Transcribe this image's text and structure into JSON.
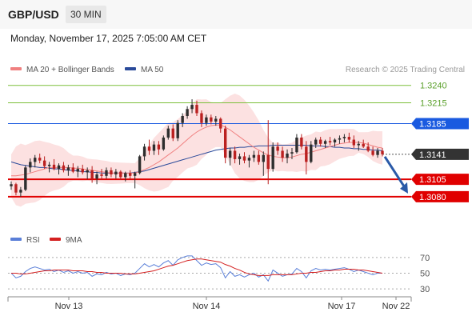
{
  "header": {
    "pair": "GBP/USD",
    "timeframe": "30 MIN"
  },
  "timestamp": "Monday, November 17, 2025 7:05:00 AM CET",
  "legend": {
    "ma20": "MA 20 + Bollinger Bands",
    "ma50": "MA 50",
    "credit": "Research © 2025 Trading Central"
  },
  "rsi_legend": {
    "rsi": "RSI",
    "ma9": "9MA"
  },
  "colors": {
    "up": "#2e2e2e",
    "down": "#bb2020",
    "ma20": "#f08080",
    "ma50": "#2a4a9a",
    "band": "#fcdede",
    "support": "#e00000",
    "pivot": "#1a5ae0",
    "resistance": "#7bbf3a",
    "last": "#333333",
    "rsi": "#5a7fd8",
    "rsi_ma": "#d42020"
  },
  "chart_data": [
    {
      "type": "candlestick",
      "title": "GBP/USD",
      "ylim": [
        1.305,
        1.325
      ],
      "x_ticks": [
        "Nov 13",
        "Nov 14",
        "Nov 17",
        "Nov 22"
      ],
      "levels": [
        {
          "label": "1.3240",
          "value": 1.324,
          "kind": "resistance"
        },
        {
          "label": "1.3215",
          "value": 1.3215,
          "kind": "resistance"
        },
        {
          "label": "1.3185",
          "value": 1.3185,
          "kind": "pivot"
        },
        {
          "label": "1.3141",
          "value": 1.3141,
          "kind": "last"
        },
        {
          "label": "1.3105",
          "value": 1.3105,
          "kind": "support"
        },
        {
          "label": "1.3080",
          "value": 1.308,
          "kind": "support"
        }
      ],
      "series": [
        {
          "name": "GBP/USD",
          "ohlc": [
            [
              1.3095,
              1.3102,
              1.309,
              1.3098
            ],
            [
              1.3098,
              1.31,
              1.3082,
              1.3086
            ],
            [
              1.3086,
              1.3094,
              1.308,
              1.309
            ],
            [
              1.309,
              1.3125,
              1.3088,
              1.3122
            ],
            [
              1.3122,
              1.3135,
              1.3115,
              1.313
            ],
            [
              1.313,
              1.314,
              1.3122,
              1.3136
            ],
            [
              1.3136,
              1.3142,
              1.3128,
              1.3132
            ],
            [
              1.3132,
              1.3138,
              1.312,
              1.3124
            ],
            [
              1.3124,
              1.313,
              1.3115,
              1.3126
            ],
            [
              1.3126,
              1.3134,
              1.3118,
              1.312
            ],
            [
              1.312,
              1.3128,
              1.3112,
              1.3125
            ],
            [
              1.3125,
              1.313,
              1.3115,
              1.3118
            ],
            [
              1.3118,
              1.3126,
              1.311,
              1.3122
            ],
            [
              1.3122,
              1.3128,
              1.3114,
              1.3116
            ],
            [
              1.3116,
              1.3124,
              1.3108,
              1.312
            ],
            [
              1.312,
              1.3126,
              1.3112,
              1.3115
            ],
            [
              1.3115,
              1.3122,
              1.3105,
              1.3118
            ],
            [
              1.3118,
              1.3124,
              1.31,
              1.3106
            ],
            [
              1.3106,
              1.3116,
              1.3098,
              1.3112
            ],
            [
              1.3112,
              1.312,
              1.3104,
              1.311
            ],
            [
              1.311,
              1.3122,
              1.3106,
              1.3118
            ],
            [
              1.3118,
              1.3122,
              1.3108,
              1.3112
            ],
            [
              1.3112,
              1.312,
              1.3106,
              1.3116
            ],
            [
              1.3116,
              1.3118,
              1.3104,
              1.3108
            ],
            [
              1.3108,
              1.3116,
              1.3102,
              1.3114
            ],
            [
              1.3114,
              1.3118,
              1.3106,
              1.311
            ],
            [
              1.311,
              1.3116,
              1.3092,
              1.3114
            ],
            [
              1.3114,
              1.314,
              1.3112,
              1.3138
            ],
            [
              1.3138,
              1.3156,
              1.3132,
              1.3152
            ],
            [
              1.3152,
              1.3162,
              1.314,
              1.3146
            ],
            [
              1.3146,
              1.316,
              1.314,
              1.3155
            ],
            [
              1.3155,
              1.316,
              1.314,
              1.3148
            ],
            [
              1.3148,
              1.3168,
              1.3146,
              1.3165
            ],
            [
              1.3165,
              1.3182,
              1.3162,
              1.3178
            ],
            [
              1.3178,
              1.3184,
              1.316,
              1.3164
            ],
            [
              1.3164,
              1.319,
              1.316,
              1.3186
            ],
            [
              1.3186,
              1.32,
              1.318,
              1.3196
            ],
            [
              1.3196,
              1.321,
              1.3192,
              1.3206
            ],
            [
              1.3206,
              1.322,
              1.32,
              1.3212
            ],
            [
              1.3212,
              1.3218,
              1.3196,
              1.32
            ],
            [
              1.32,
              1.3204,
              1.318,
              1.3186
            ],
            [
              1.3186,
              1.3198,
              1.3182,
              1.3194
            ],
            [
              1.3194,
              1.3198,
              1.3184,
              1.3188
            ],
            [
              1.3188,
              1.3196,
              1.3182,
              1.3192
            ],
            [
              1.3192,
              1.3194,
              1.3172,
              1.3178
            ],
            [
              1.3178,
              1.3182,
              1.3128,
              1.3136
            ],
            [
              1.3136,
              1.315,
              1.3125,
              1.3146
            ],
            [
              1.3146,
              1.3152,
              1.3128,
              1.3134
            ],
            [
              1.3134,
              1.3142,
              1.3126,
              1.3138
            ],
            [
              1.3138,
              1.3144,
              1.3128,
              1.3132
            ],
            [
              1.3132,
              1.314,
              1.3122,
              1.3136
            ],
            [
              1.3136,
              1.3146,
              1.313,
              1.314
            ],
            [
              1.314,
              1.3146,
              1.3126,
              1.313
            ],
            [
              1.313,
              1.3145,
              1.311,
              1.314
            ],
            [
              1.314,
              1.319,
              1.3098,
              1.312
            ],
            [
              1.312,
              1.3158,
              1.3116,
              1.3152
            ],
            [
              1.3152,
              1.3158,
              1.314,
              1.3146
            ],
            [
              1.3146,
              1.3152,
              1.313,
              1.3136
            ],
            [
              1.3136,
              1.3148,
              1.3128,
              1.3142
            ],
            [
              1.3142,
              1.315,
              1.3134,
              1.3144
            ],
            [
              1.3144,
              1.317,
              1.3142,
              1.3165
            ],
            [
              1.3165,
              1.317,
              1.3148,
              1.3152
            ],
            [
              1.3152,
              1.316,
              1.3112,
              1.313
            ],
            [
              1.313,
              1.316,
              1.3128,
              1.3155
            ],
            [
              1.3155,
              1.3165,
              1.315,
              1.3162
            ],
            [
              1.3162,
              1.3166,
              1.3152,
              1.3156
            ],
            [
              1.3156,
              1.3162,
              1.315,
              1.316
            ],
            [
              1.316,
              1.3166,
              1.3154,
              1.3158
            ],
            [
              1.3158,
              1.3164,
              1.3152,
              1.3162
            ],
            [
              1.3162,
              1.3168,
              1.3156,
              1.3164
            ],
            [
              1.3164,
              1.317,
              1.3158,
              1.3166
            ],
            [
              1.3166,
              1.3172,
              1.3158,
              1.3162
            ],
            [
              1.3162,
              1.3168,
              1.315,
              1.3154
            ],
            [
              1.3154,
              1.316,
              1.3146,
              1.3156
            ],
            [
              1.3156,
              1.3162,
              1.315,
              1.3152
            ],
            [
              1.3152,
              1.3158,
              1.3144,
              1.3146
            ],
            [
              1.3146,
              1.3152,
              1.3138,
              1.314
            ],
            [
              1.314,
              1.315,
              1.3136,
              1.3146
            ],
            [
              1.3146,
              1.315,
              1.3138,
              1.3141
            ]
          ]
        },
        {
          "name": "MA 20",
          "values": [
            1.311,
            1.311,
            1.3111,
            1.3112,
            1.3114,
            1.3116,
            1.3118,
            1.312,
            1.3122,
            1.3122,
            1.3122,
            1.3122,
            1.3122,
            1.3121,
            1.3121,
            1.312,
            1.3119,
            1.3118,
            1.3117,
            1.3116,
            1.3115,
            1.3114,
            1.3114,
            1.3114,
            1.3114,
            1.3114,
            1.3114,
            1.3116,
            1.3119,
            1.3122,
            1.3126,
            1.313,
            1.3135,
            1.314,
            1.3145,
            1.315,
            1.3156,
            1.3162,
            1.3168,
            1.3173,
            1.3177,
            1.318,
            1.3182,
            1.3183,
            1.3183,
            1.318,
            1.3176,
            1.3171,
            1.3166,
            1.3161,
            1.3156,
            1.3151,
            1.3147,
            1.3143,
            1.314,
            1.3138,
            1.3137,
            1.3136,
            1.3136,
            1.3137,
            1.3139,
            1.3141,
            1.3142,
            1.3144,
            1.3146,
            1.3148,
            1.315,
            1.3152,
            1.3154,
            1.3156,
            1.3157,
            1.3158,
            1.3158,
            1.3158,
            1.3157,
            1.3155,
            1.3153,
            1.3151,
            1.315
          ]
        },
        {
          "name": "MA 50",
          "values": [
            1.313,
            1.3128,
            1.3126,
            1.3125,
            1.3124,
            1.3123,
            1.3122,
            1.3122,
            1.3121,
            1.312,
            1.312,
            1.3119,
            1.3118,
            1.3118,
            1.3117,
            1.3116,
            1.3116,
            1.3115,
            1.3115,
            1.3114,
            1.3114,
            1.3114,
            1.3114,
            1.3114,
            1.3114,
            1.3114,
            1.3115,
            1.3116,
            1.3117,
            1.3119,
            1.3121,
            1.3123,
            1.3125,
            1.3127,
            1.3129,
            1.3131,
            1.3133,
            1.3135,
            1.3137,
            1.3139,
            1.3141,
            1.3143,
            1.3145,
            1.3147,
            1.3148,
            1.3149,
            1.315,
            1.315,
            1.3151,
            1.3151,
            1.3152,
            1.3152,
            1.3153,
            1.3153,
            1.3153,
            1.3154,
            1.3154,
            1.3154,
            1.3154,
            1.3154,
            1.3154,
            1.3154,
            1.3154,
            1.3153,
            1.3153,
            1.3153,
            1.3152,
            1.3152,
            1.3151,
            1.3151,
            1.315,
            1.315,
            1.3149,
            1.3149,
            1.3148,
            1.3148,
            1.3147,
            1.3147,
            1.3146
          ]
        }
      ],
      "projection": {
        "from": 1.3141,
        "to": 1.308
      }
    },
    {
      "type": "line",
      "title": "RSI",
      "ylim": [
        25,
        80
      ],
      "y_ticks": [
        70,
        50,
        30
      ],
      "series": [
        {
          "name": "RSI",
          "values": [
            50,
            44,
            46,
            52,
            56,
            58,
            56,
            54,
            55,
            52,
            54,
            51,
            53,
            50,
            52,
            50,
            51,
            46,
            49,
            48,
            51,
            49,
            50,
            47,
            49,
            48,
            50,
            56,
            62,
            58,
            61,
            58,
            63,
            66,
            60,
            67,
            70,
            72,
            72,
            66,
            60,
            63,
            61,
            62,
            57,
            44,
            52,
            46,
            48,
            45,
            48,
            50,
            45,
            48,
            40,
            54,
            50,
            46,
            48,
            49,
            56,
            52,
            44,
            53,
            56,
            54,
            55,
            54,
            55,
            56,
            57,
            55,
            52,
            54,
            52,
            50,
            48,
            50,
            50
          ]
        },
        {
          "name": "9MA",
          "values": [
            50,
            50,
            49,
            49,
            50,
            51,
            52,
            53,
            53,
            54,
            54,
            54,
            54,
            53,
            53,
            53,
            52,
            52,
            51,
            51,
            50,
            50,
            50,
            50,
            49,
            49,
            49,
            50,
            51,
            52,
            53,
            55,
            57,
            59,
            60,
            62,
            64,
            66,
            67,
            68,
            68,
            67,
            66,
            65,
            64,
            61,
            59,
            56,
            54,
            51,
            49,
            48,
            47,
            47,
            47,
            48,
            48,
            48,
            48,
            48,
            49,
            50,
            50,
            51,
            51,
            52,
            53,
            53,
            54,
            54,
            55,
            55,
            55,
            54,
            54,
            53,
            52,
            51,
            50
          ]
        }
      ]
    }
  ]
}
